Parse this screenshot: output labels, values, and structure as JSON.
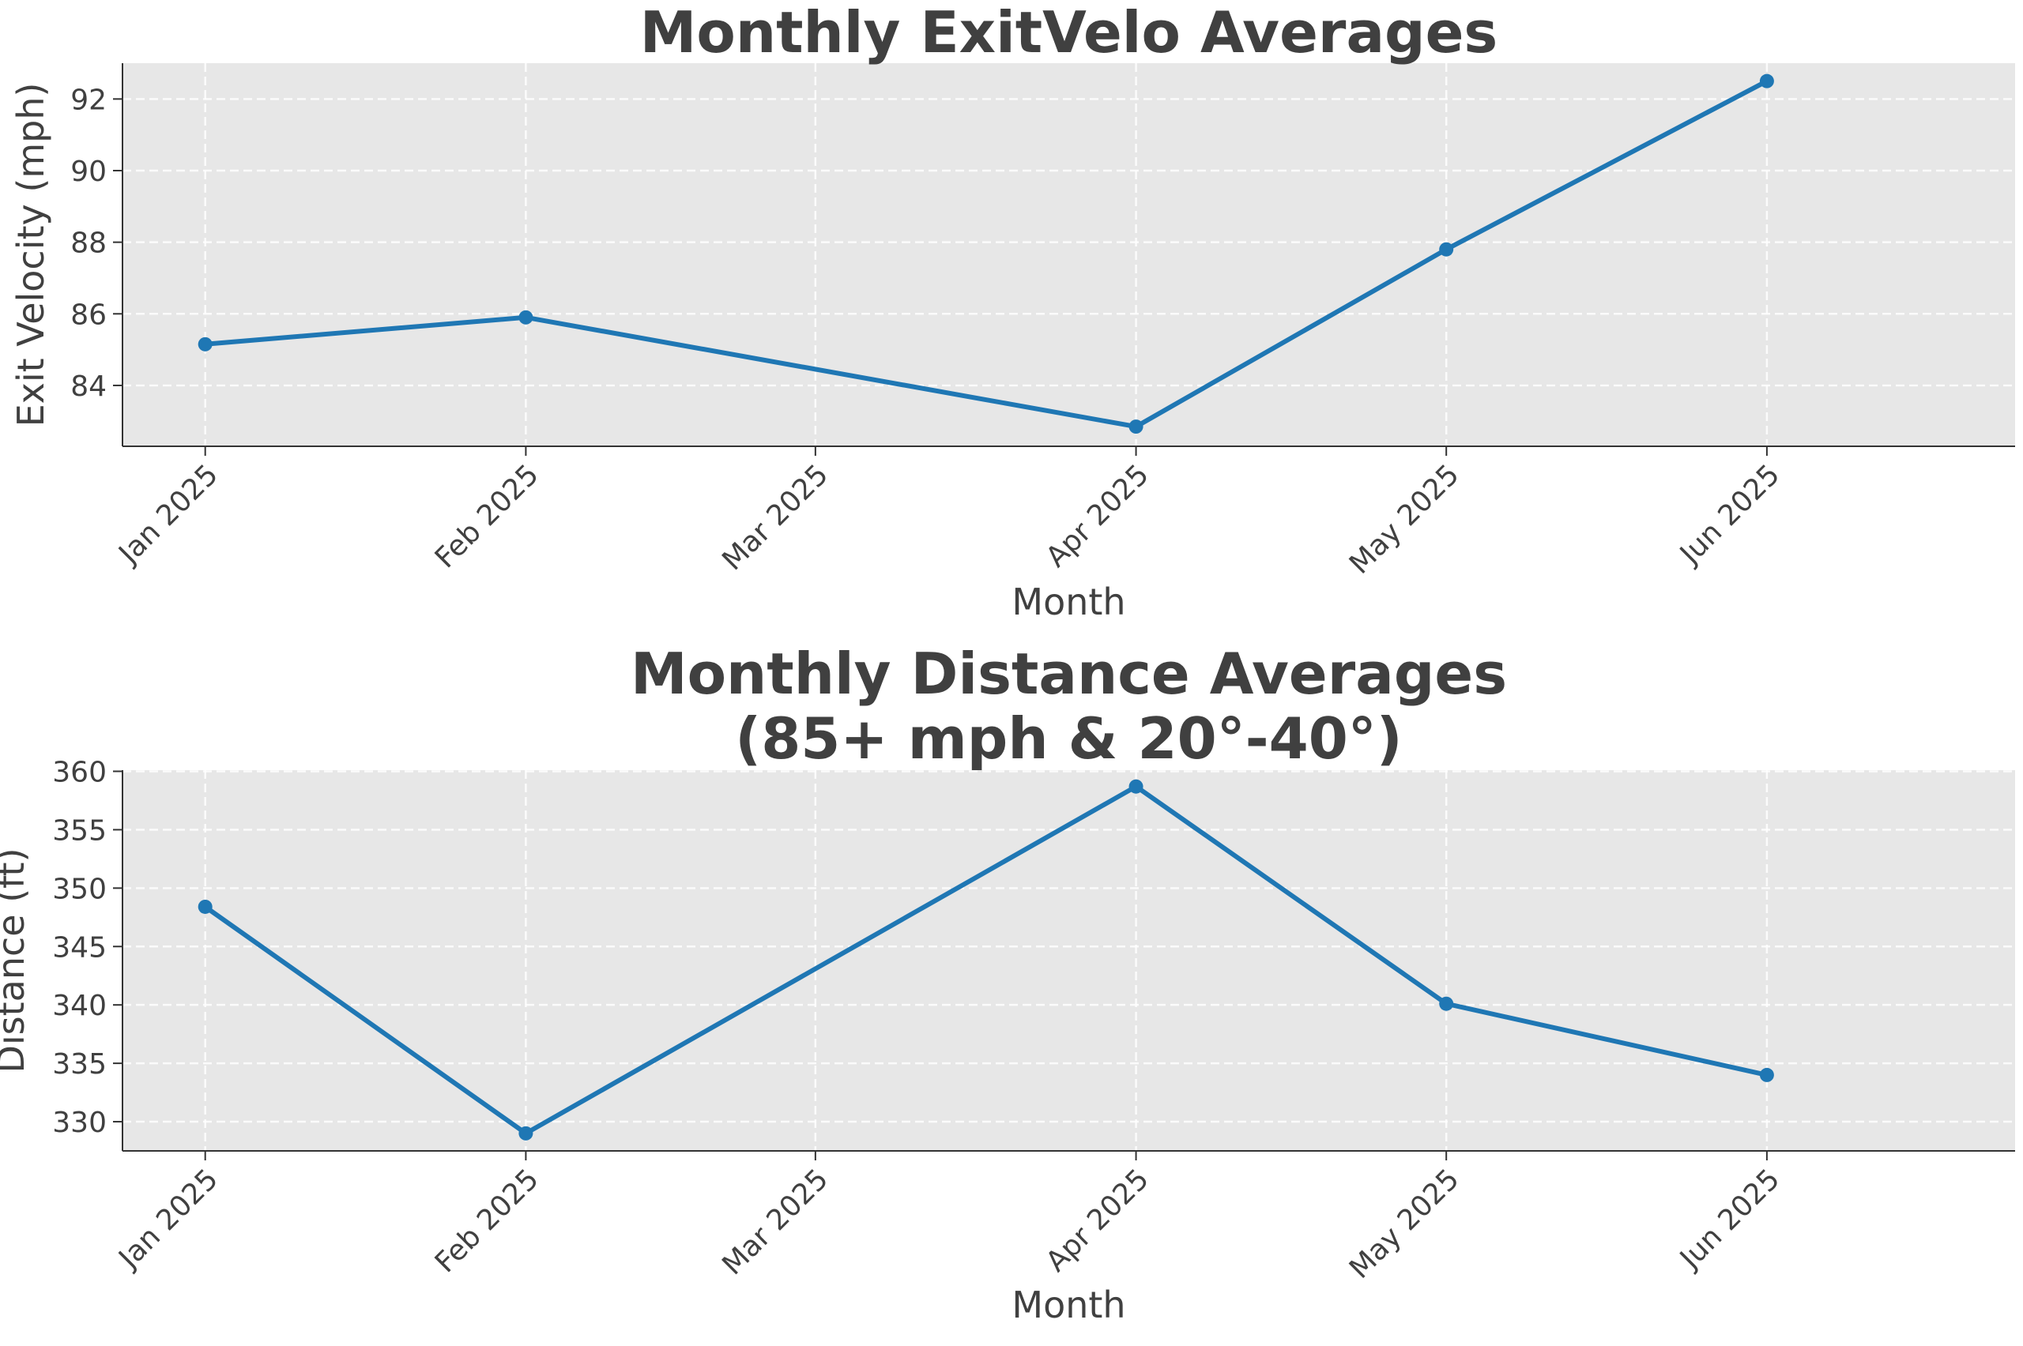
{
  "chart_data": [
    {
      "type": "line",
      "title": "Monthly ExitVelo Averages",
      "xlabel": "Month",
      "ylabel": "Exit Velocity (mph)",
      "x": [
        "2025-01-01",
        "2025-02-01",
        "2025-04-01",
        "2025-05-01",
        "2025-06-01"
      ],
      "series": [
        {
          "values": [
            85.15,
            85.9,
            82.85,
            87.8,
            92.5
          ]
        }
      ],
      "x_ticks": [
        "2025-01-01",
        "2025-02-01",
        "2025-03-01",
        "2025-04-01",
        "2025-05-01",
        "2025-06-01"
      ],
      "x_tick_labels": [
        "Jan 2025",
        "Feb 2025",
        "Mar 2025",
        "Apr 2025",
        "May 2025",
        "Jun 2025"
      ],
      "y_ticks": [
        84,
        86,
        88,
        90,
        92
      ],
      "xlim": [
        "2024-12-24",
        "2025-06-25"
      ],
      "ylim": [
        82.3,
        93.0
      ],
      "grid": true,
      "color": "#1f77b4",
      "background": "#e7e7e7"
    },
    {
      "type": "line",
      "title": "Monthly Distance Averages\n(85+ mph & 20°-40°)",
      "xlabel": "Month",
      "ylabel": "Distance (ft)",
      "x": [
        "2025-01-01",
        "2025-02-01",
        "2025-04-01",
        "2025-05-01",
        "2025-06-01"
      ],
      "series": [
        {
          "values": [
            348.4,
            329.0,
            358.7,
            340.1,
            334.0
          ]
        }
      ],
      "x_ticks": [
        "2025-01-01",
        "2025-02-01",
        "2025-03-01",
        "2025-04-01",
        "2025-05-01",
        "2025-06-01"
      ],
      "x_tick_labels": [
        "Jan 2025",
        "Feb 2025",
        "Mar 2025",
        "Apr 2025",
        "May 2025",
        "Jun 2025"
      ],
      "y_ticks": [
        330,
        335,
        340,
        345,
        350,
        355,
        360
      ],
      "xlim": [
        "2024-12-24",
        "2025-06-25"
      ],
      "ylim": [
        327.5,
        360.1
      ],
      "grid": true,
      "color": "#1f77b4",
      "background": "#e7e7e7"
    }
  ]
}
